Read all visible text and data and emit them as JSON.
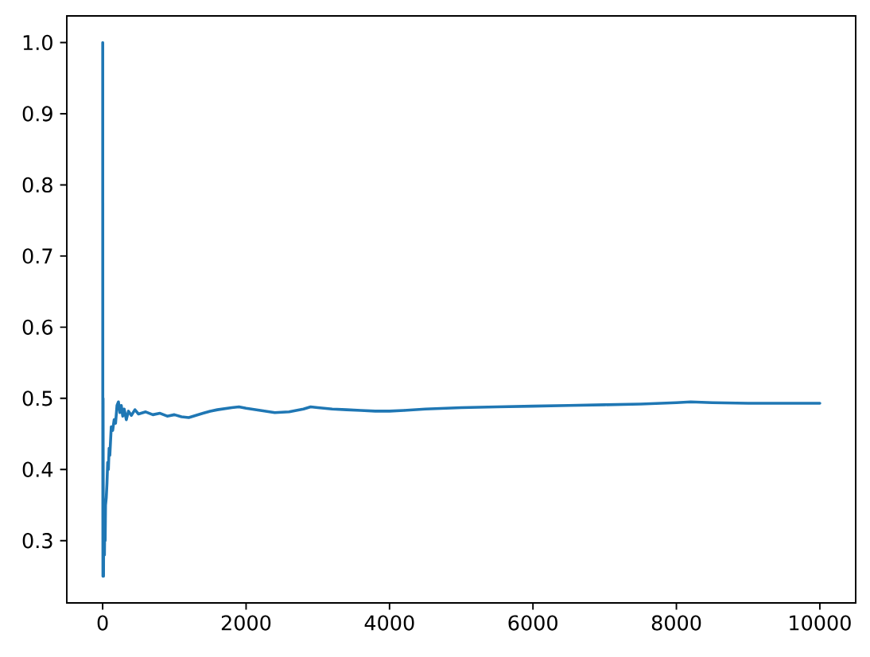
{
  "chart_data": {
    "type": "line",
    "x": [
      1,
      2,
      3,
      4,
      5,
      6,
      7,
      8,
      10,
      12,
      15,
      20,
      25,
      30,
      35,
      40,
      50,
      60,
      70,
      80,
      90,
      100,
      120,
      140,
      160,
      180,
      200,
      220,
      240,
      260,
      280,
      300,
      330,
      360,
      400,
      450,
      500,
      600,
      700,
      800,
      900,
      1000,
      1100,
      1200,
      1300,
      1400,
      1500,
      1600,
      1800,
      1900,
      2000,
      2200,
      2400,
      2600,
      2800,
      2900,
      3000,
      3200,
      3400,
      3600,
      3800,
      4000,
      4200,
      4500,
      5000,
      5500,
      6000,
      6500,
      7000,
      7500,
      8000,
      8200,
      8500,
      9000,
      9500,
      10000
    ],
    "values": [
      1.0,
      0.5,
      0.333,
      0.25,
      0.4,
      0.5,
      0.429,
      0.375,
      0.3,
      0.25,
      0.333,
      0.3,
      0.28,
      0.33,
      0.3,
      0.35,
      0.36,
      0.38,
      0.41,
      0.4,
      0.43,
      0.42,
      0.46,
      0.455,
      0.47,
      0.465,
      0.49,
      0.495,
      0.48,
      0.49,
      0.475,
      0.485,
      0.47,
      0.482,
      0.476,
      0.484,
      0.478,
      0.481,
      0.477,
      0.479,
      0.475,
      0.477,
      0.474,
      0.473,
      0.476,
      0.479,
      0.482,
      0.484,
      0.487,
      0.488,
      0.486,
      0.483,
      0.48,
      0.481,
      0.485,
      0.488,
      0.487,
      0.485,
      0.484,
      0.483,
      0.482,
      0.482,
      0.483,
      0.485,
      0.487,
      0.488,
      0.489,
      0.49,
      0.491,
      0.492,
      0.494,
      0.495,
      0.494,
      0.493,
      0.493,
      0.493
    ],
    "color": "#1f77b4",
    "xlim": [
      -500,
      10500
    ],
    "ylim": [
      0.2125,
      1.0375
    ],
    "xticks": [
      0,
      2000,
      4000,
      6000,
      8000,
      10000
    ],
    "yticks": [
      0.3,
      0.4,
      0.5,
      0.6,
      0.7,
      0.8,
      0.9,
      {
        "value": 1,
        "label": "1.0"
      }
    ]
  }
}
